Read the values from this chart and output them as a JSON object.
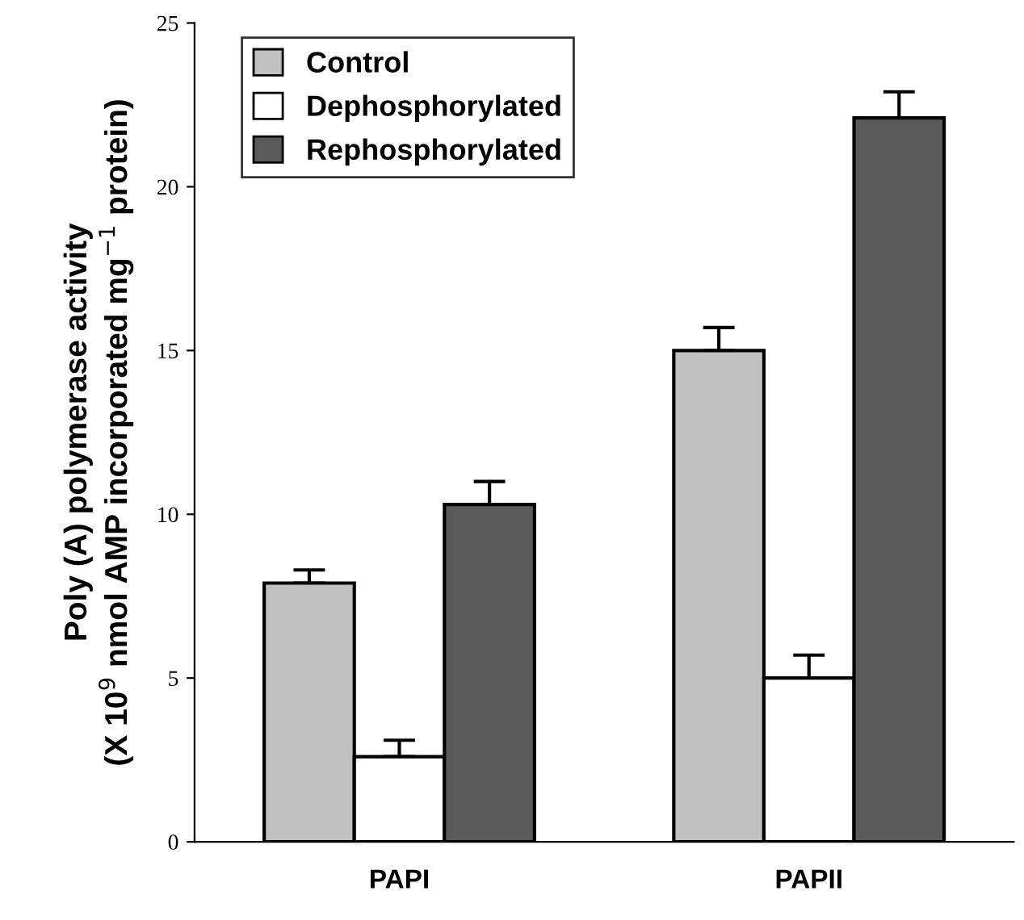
{
  "chart_data": {
    "type": "bar",
    "categories": [
      "PAPI",
      "PAPII"
    ],
    "ylabel": "Poly (A) polymerase activity\n(X 10$^{9}$ nmol AMP incorporated mg$^{−1}$ protein)",
    "series": [
      {
        "name": "Control",
        "color": "#c0c0c0",
        "values": [
          7.9,
          15.0
        ],
        "errors": [
          [
            7.9,
            8.3
          ],
          [
            15.0,
            15.7
          ]
        ]
      },
      {
        "name": "Dephosphorylated",
        "color": "#ffffff",
        "values": [
          2.6,
          5.0
        ],
        "errors": [
          [
            2.6,
            3.1
          ],
          [
            5.0,
            5.7
          ]
        ]
      },
      {
        "name": "Rephosphorylated",
        "color": "#5a5a5a",
        "values": [
          10.3,
          22.1
        ],
        "errors": [
          [
            10.3,
            11.0
          ],
          [
            22.1,
            22.9
          ]
        ]
      }
    ],
    "ylim": [
      0,
      25
    ],
    "yticks": [
      0,
      5,
      10,
      15,
      20,
      25
    ],
    "legend": "top left",
    "grid": false
  }
}
